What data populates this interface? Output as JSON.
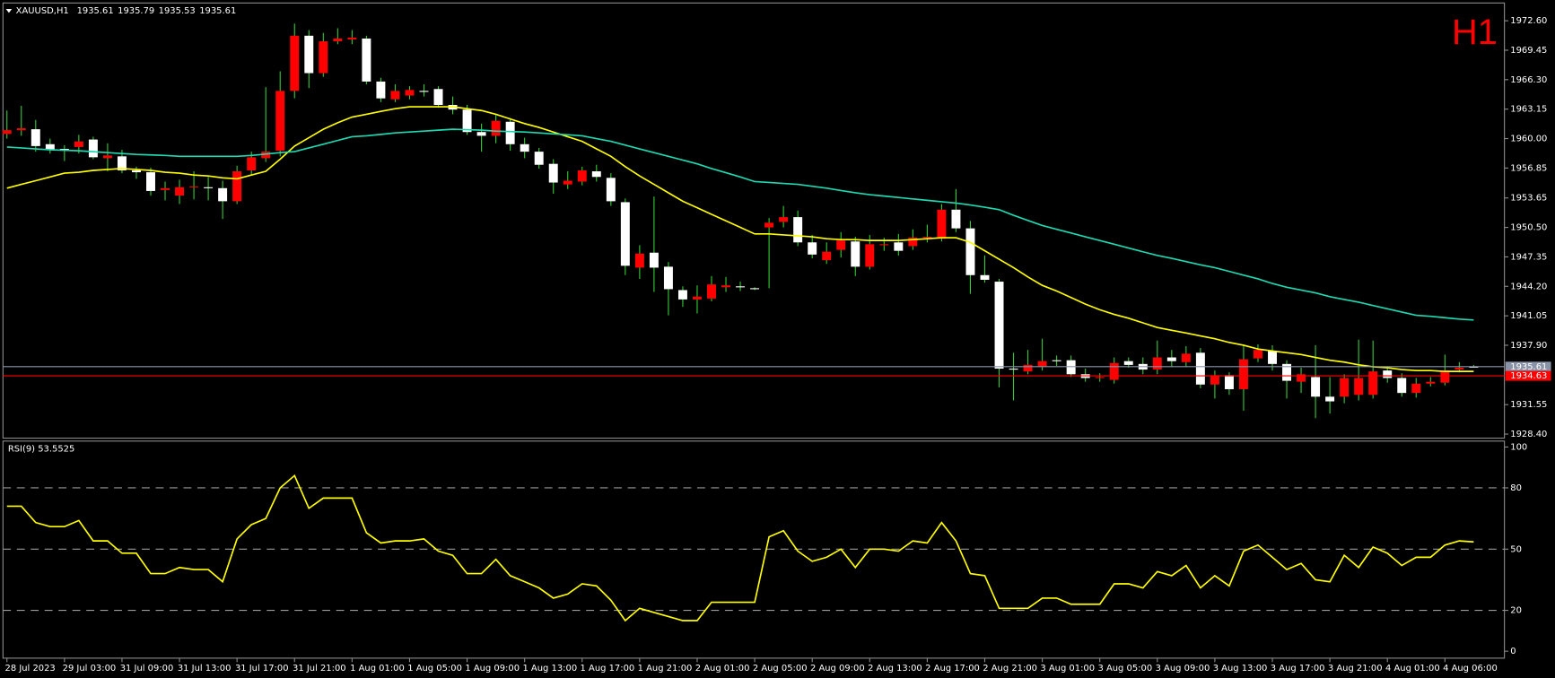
{
  "chart_data": [
    {
      "type": "candlestick",
      "title": "XAUUSD,H1",
      "timeframe": "H1",
      "categories": [
        "28 Jul 2023",
        null,
        null,
        null,
        "29 Jul 03:00",
        null,
        null,
        null,
        "31 Jul 09:00",
        null,
        null,
        null,
        "31 Jul 13:00",
        null,
        null,
        null,
        "31 Jul 17:00",
        null,
        null,
        null,
        "31 Jul 21:00",
        null,
        null,
        null,
        "1 Aug 01:00",
        null,
        null,
        null,
        "1 Aug 05:00",
        null,
        null,
        null,
        "1 Aug 09:00",
        null,
        null,
        null,
        "1 Aug 13:00",
        null,
        null,
        null,
        "1 Aug 17:00",
        null,
        null,
        null,
        "1 Aug 21:00",
        null,
        null,
        null,
        "2 Aug 01:00",
        null,
        null,
        null,
        "2 Aug 05:00",
        null,
        null,
        null,
        "2 Aug 09:00",
        null,
        null,
        null,
        "2 Aug 13:00",
        null,
        null,
        null,
        "2 Aug 17:00",
        null,
        null,
        null,
        "2 Aug 21:00",
        null,
        null,
        null,
        "3 Aug 01:00",
        null,
        null,
        null,
        "3 Aug 05:00",
        null,
        null,
        null,
        "3 Aug 09:00",
        null,
        null,
        null,
        "3 Aug 13:00",
        null,
        null,
        null,
        "3 Aug 17:00",
        null,
        null,
        null,
        "3 Aug 21:00",
        null,
        null,
        null,
        "4 Aug 01:00",
        null,
        null,
        null,
        "4 Aug 06:00",
        null,
        null
      ],
      "open": [
        1960.5,
        1960.9,
        1961.0,
        1959.4,
        1958.9,
        1959.1,
        1959.9,
        1957.9,
        1958.1,
        1956.6,
        1956.4,
        1954.5,
        1953.9,
        1954.8,
        1954.8,
        1954.7,
        1953.3,
        1956.6,
        1957.9,
        1958.7,
        1965.1,
        1971.0,
        1967.0,
        1970.4,
        1970.6,
        1970.7,
        1966.1,
        1964.2,
        1964.6,
        1965.1,
        1965.3,
        1963.6,
        1963.1,
        1960.7,
        1960.3,
        1961.8,
        1959.4,
        1958.6,
        1957.3,
        1955.1,
        1955.4,
        1956.5,
        1955.8,
        1953.2,
        1946.2,
        1947.8,
        1946.3,
        1943.8,
        1942.8,
        1942.9,
        1944.1,
        1944.2,
        1944.0,
        1950.5,
        1951.1,
        1951.6,
        1948.9,
        1947.0,
        1948.1,
        1949.0,
        1946.3,
        1948.6,
        1948.9,
        1948.5,
        1949.4,
        1949.3,
        1952.4,
        1950.4,
        1945.4,
        1944.7,
        1935.4,
        1935.1,
        1935.6,
        1936.3,
        1936.3,
        1934.8,
        1934.4,
        1934.2,
        1936.2,
        1935.9,
        1935.3,
        1936.6,
        1936.1,
        1937.1,
        1933.7,
        1934.7,
        1933.2,
        1936.5,
        1937.3,
        1935.9,
        1934.0,
        1934.5,
        1932.4,
        1932.4,
        1932.6,
        1932.6,
        1935.2,
        1934.4,
        1932.8,
        1933.8,
        1933.9,
        1935.3,
        1935.61
      ],
      "high": [
        1963.0,
        1963.5,
        1962.0,
        1960.0,
        1959.3,
        1960.4,
        1960.2,
        1959.5,
        1958.8,
        1957.0,
        1956.9,
        1955.4,
        1955.6,
        1956.5,
        1955.9,
        1955.5,
        1957.1,
        1958.6,
        1965.5,
        1967.2,
        1972.3,
        1971.6,
        1971.3,
        1971.8,
        1971.6,
        1971.0,
        1966.5,
        1965.8,
        1965.6,
        1965.8,
        1965.6,
        1964.5,
        1963.6,
        1961.6,
        1962.5,
        1962.2,
        1960.1,
        1959.0,
        1957.8,
        1956.5,
        1957.0,
        1957.2,
        1956.3,
        1953.6,
        1948.6,
        1953.8,
        1946.8,
        1944.2,
        1944.3,
        1945.3,
        1945.2,
        1944.7,
        1944.1,
        1951.5,
        1952.8,
        1952.3,
        1949.7,
        1948.9,
        1950.0,
        1949.5,
        1949.7,
        1949.4,
        1949.8,
        1950.3,
        1950.8,
        1953.0,
        1954.6,
        1951.2,
        1947.5,
        1945.0,
        1937.1,
        1937.4,
        1938.6,
        1936.8,
        1936.8,
        1935.4,
        1934.9,
        1936.6,
        1936.6,
        1936.6,
        1938.4,
        1937.4,
        1937.8,
        1937.6,
        1935.2,
        1935.0,
        1937.9,
        1938.0,
        1937.9,
        1936.3,
        1935.5,
        1937.9,
        1934.5,
        1934.8,
        1938.5,
        1938.4,
        1935.6,
        1934.9,
        1934.4,
        1934.5,
        1936.9,
        1936.1,
        1935.79
      ],
      "low": [
        1960.0,
        1960.3,
        1958.6,
        1958.4,
        1957.6,
        1958.4,
        1957.8,
        1956.5,
        1956.3,
        1955.7,
        1953.9,
        1953.4,
        1953.0,
        1953.5,
        1953.4,
        1951.4,
        1953.0,
        1956.1,
        1957.5,
        1958.1,
        1964.3,
        1965.4,
        1966.6,
        1970.1,
        1970.1,
        1965.8,
        1963.9,
        1963.9,
        1964.2,
        1964.5,
        1963.3,
        1962.6,
        1960.4,
        1958.6,
        1959.5,
        1958.7,
        1957.9,
        1956.8,
        1954.1,
        1954.6,
        1955.0,
        1955.4,
        1952.8,
        1945.4,
        1945.0,
        1943.6,
        1941.1,
        1942.0,
        1941.3,
        1942.6,
        1943.6,
        1943.7,
        1943.8,
        1944.0,
        1950.5,
        1948.5,
        1947.2,
        1946.6,
        1947.3,
        1945.3,
        1946.0,
        1948.0,
        1947.5,
        1948.1,
        1948.9,
        1949.0,
        1950.0,
        1943.4,
        1944.6,
        1933.4,
        1932.0,
        1934.8,
        1935.2,
        1935.7,
        1934.5,
        1934.0,
        1934.0,
        1933.8,
        1935.5,
        1934.8,
        1934.8,
        1935.6,
        1935.6,
        1933.3,
        1932.2,
        1932.6,
        1930.9,
        1936.1,
        1935.2,
        1932.2,
        1932.8,
        1930.1,
        1930.6,
        1931.7,
        1932.0,
        1932.2,
        1933.9,
        1932.4,
        1932.3,
        1933.5,
        1933.6,
        1935.0,
        1935.53
      ],
      "close": [
        1960.9,
        1961.1,
        1959.2,
        1958.8,
        1958.7,
        1959.7,
        1958.0,
        1958.2,
        1956.6,
        1956.4,
        1954.4,
        1954.7,
        1954.8,
        1954.9,
        1954.7,
        1953.3,
        1956.5,
        1958.0,
        1958.6,
        1965.1,
        1971.0,
        1967.0,
        1970.4,
        1970.7,
        1970.8,
        1966.1,
        1964.3,
        1965.1,
        1965.2,
        1965.0,
        1963.6,
        1963.1,
        1960.7,
        1960.3,
        1961.9,
        1959.4,
        1958.6,
        1957.2,
        1955.3,
        1955.5,
        1956.6,
        1955.9,
        1953.3,
        1946.4,
        1947.7,
        1946.2,
        1943.9,
        1942.8,
        1943.1,
        1944.4,
        1944.3,
        1944.1,
        1943.95,
        1951.0,
        1951.6,
        1948.9,
        1947.6,
        1947.9,
        1949.1,
        1946.3,
        1948.7,
        1948.7,
        1948.0,
        1949.4,
        1949.5,
        1952.4,
        1950.4,
        1945.4,
        1944.9,
        1935.4,
        1935.3,
        1935.8,
        1936.2,
        1936.2,
        1934.8,
        1934.4,
        1934.5,
        1936.0,
        1935.8,
        1935.3,
        1936.6,
        1936.2,
        1937.0,
        1933.7,
        1934.7,
        1933.2,
        1936.4,
        1937.4,
        1935.9,
        1934.1,
        1934.8,
        1932.4,
        1931.9,
        1934.4,
        1934.4,
        1935.1,
        1934.4,
        1932.8,
        1933.8,
        1934.0,
        1935.2,
        1935.5,
        1935.61
      ],
      "up_color": "#ff0000",
      "down_color": "#ffffff",
      "wick_color": "#33cc33",
      "series": [
        {
          "color": "#ffff00",
          "values": [
            1954.7,
            1955.1,
            1955.5,
            1955.9,
            1956.3,
            1956.4,
            1956.6,
            1956.7,
            1956.8,
            1956.7,
            1956.6,
            1956.4,
            1956.3,
            1956.1,
            1956.0,
            1955.8,
            1955.7,
            1956.1,
            1956.5,
            1957.8,
            1959.2,
            1960.1,
            1961.0,
            1961.7,
            1962.3,
            1962.6,
            1962.9,
            1963.2,
            1963.4,
            1963.4,
            1963.4,
            1963.4,
            1963.2,
            1963.0,
            1962.6,
            1962.1,
            1961.6,
            1961.2,
            1960.7,
            1960.2,
            1959.7,
            1958.9,
            1958.1,
            1957.0,
            1956.0,
            1955.1,
            1954.2,
            1953.3,
            1952.6,
            1951.9,
            1951.2,
            1950.5,
            1949.8,
            1949.8,
            1949.7,
            1949.6,
            1949.5,
            1949.3,
            1949.2,
            1949.2,
            1949.1,
            1949.1,
            1949.1,
            1949.2,
            1949.3,
            1949.4,
            1949.4,
            1948.9,
            1948.0,
            1947.1,
            1946.2,
            1945.2,
            1944.3,
            1943.7,
            1943.0,
            1942.3,
            1941.7,
            1941.2,
            1940.8,
            1940.3,
            1939.8,
            1939.5,
            1939.2,
            1938.9,
            1938.6,
            1938.2,
            1937.9,
            1937.5,
            1937.3,
            1937.1,
            1936.9,
            1936.6,
            1936.3,
            1936.1,
            1935.8,
            1935.6,
            1935.5,
            1935.3,
            1935.2,
            1935.2,
            1935.1,
            1935.1,
            1935.1
          ]
        },
        {
          "color": "#20d8b0",
          "values": [
            1959.1,
            1959.0,
            1958.9,
            1958.8,
            1958.75,
            1958.7,
            1958.6,
            1958.5,
            1958.4,
            1958.3,
            1958.25,
            1958.2,
            1958.1,
            1958.1,
            1958.1,
            1958.1,
            1958.1,
            1958.2,
            1958.35,
            1958.5,
            1958.6,
            1959.0,
            1959.4,
            1959.8,
            1960.2,
            1960.3,
            1960.45,
            1960.6,
            1960.7,
            1960.8,
            1960.9,
            1961.0,
            1960.95,
            1960.9,
            1960.8,
            1960.75,
            1960.7,
            1960.6,
            1960.5,
            1960.4,
            1960.3,
            1960.0,
            1959.7,
            1959.3,
            1958.9,
            1958.5,
            1958.1,
            1957.7,
            1957.3,
            1956.8,
            1956.35,
            1955.9,
            1955.4,
            1955.3,
            1955.2,
            1955.1,
            1954.9,
            1954.7,
            1954.45,
            1954.2,
            1954.0,
            1953.85,
            1953.7,
            1953.55,
            1953.4,
            1953.25,
            1953.1,
            1952.9,
            1952.65,
            1952.4,
            1951.8,
            1951.25,
            1950.7,
            1950.3,
            1949.9,
            1949.5,
            1949.1,
            1948.7,
            1948.3,
            1947.9,
            1947.5,
            1947.2,
            1946.85,
            1946.5,
            1946.2,
            1945.8,
            1945.4,
            1945.0,
            1944.5,
            1944.1,
            1943.8,
            1943.5,
            1943.1,
            1942.8,
            1942.5,
            1942.15,
            1941.8,
            1941.45,
            1941.1,
            1941.0,
            1940.85,
            1940.7,
            1940.6
          ]
        }
      ],
      "price_lines": [
        {
          "value": 1935.61,
          "color": "#8a94a8"
        },
        {
          "value": 1934.63,
          "color": "#ff0000"
        }
      ],
      "ylim": [
        1927.97,
        1974.5
      ],
      "yticks": [
        {
          "value": 1972.6,
          "label": "1972.60"
        },
        1969.45,
        {
          "value": 1966.3,
          "label": "1966.30"
        },
        1963.15,
        {
          "value": 1960,
          "label": "1960.00"
        },
        1956.85,
        1953.65,
        {
          "value": 1950.5,
          "label": "1950.50"
        },
        1947.35,
        {
          "value": 1944.2,
          "label": "1944.20"
        },
        1941.05,
        {
          "value": 1937.9,
          "label": "1937.90"
        },
        1931.55,
        {
          "value": 1928.4,
          "label": "1928.40"
        }
      ]
    },
    {
      "type": "line",
      "title": "RSI(9) 53.5525",
      "color": "#ffff00",
      "values": [
        71,
        71,
        63,
        61,
        61,
        64,
        54,
        54,
        48,
        48,
        38,
        38,
        41,
        40,
        40,
        34,
        55,
        62,
        65,
        80,
        86,
        70,
        75,
        75,
        75,
        58,
        53,
        54,
        54,
        55,
        49,
        47,
        38,
        38,
        45,
        37,
        34,
        31,
        26,
        28,
        33,
        32,
        25,
        15,
        21,
        19,
        17,
        15,
        15,
        24,
        24,
        24,
        24,
        56,
        59,
        49,
        44,
        46,
        50,
        41,
        50,
        50,
        49,
        54,
        53,
        63,
        54,
        38,
        37,
        21,
        21,
        21,
        26,
        26,
        23,
        23,
        23,
        33,
        33,
        31,
        39,
        37,
        42,
        31,
        37,
        32,
        49,
        52,
        46,
        40,
        43,
        35,
        34,
        47,
        41,
        51,
        48,
        42,
        46,
        46,
        52,
        54,
        53.5525
      ],
      "ylim": [
        -3.4,
        102.9
      ],
      "yticks": [
        0,
        20,
        50,
        80,
        100
      ]
    }
  ]
}
